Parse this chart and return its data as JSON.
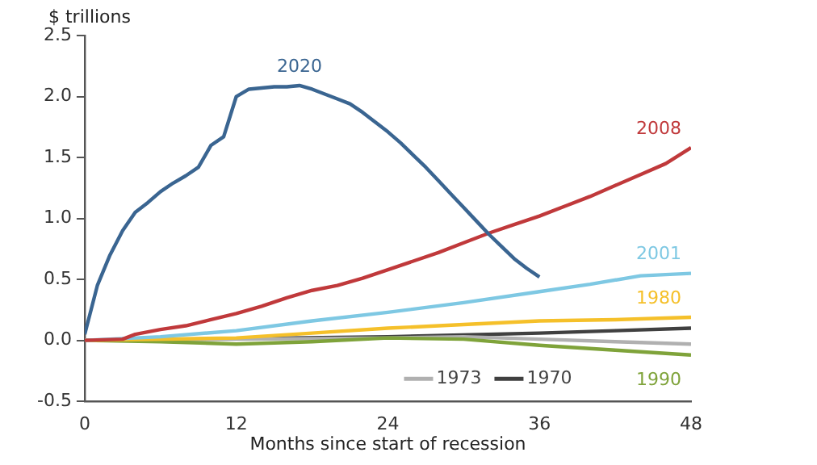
{
  "chart_data": {
    "type": "line",
    "ylabel": "$ trillions",
    "xlabel": "Months since start of recession",
    "xlim": [
      0,
      48
    ],
    "xticks": [
      0,
      12,
      24,
      36,
      48
    ],
    "ylim": [
      -0.5,
      2.5
    ],
    "yticks": [
      {
        "value": -0.5,
        "label": "-0.5"
      },
      {
        "value": 0,
        "label": "0.0"
      },
      0.5,
      {
        "value": 1,
        "label": "1.0"
      },
      1.5,
      {
        "value": 2,
        "label": "2.0"
      },
      2.5
    ],
    "grid": false,
    "legend": "bottom",
    "marker": "none",
    "line_style": "solid",
    "series": [
      {
        "name": "2020",
        "color": "#3a6591",
        "x": [
          0,
          1,
          2,
          3,
          4,
          5,
          6,
          7,
          8,
          9,
          10,
          11,
          12,
          13,
          14,
          15,
          16,
          17,
          18,
          19,
          20,
          21,
          22,
          23,
          24,
          25,
          26,
          27,
          28,
          29,
          30,
          31,
          32,
          33,
          34,
          35,
          36
        ],
        "values": [
          0.05,
          0.45,
          0.7,
          0.9,
          1.05,
          1.13,
          1.22,
          1.29,
          1.35,
          1.42,
          1.6,
          1.67,
          2.0,
          2.06,
          2.07,
          2.08,
          2.08,
          2.09,
          2.06,
          2.02,
          1.98,
          1.94,
          1.87,
          1.79,
          1.71,
          1.62,
          1.52,
          1.42,
          1.31,
          1.2,
          1.09,
          0.98,
          0.87,
          0.77,
          0.67,
          0.59,
          0.52
        ]
      },
      {
        "name": "2008",
        "color": "#c0393b",
        "x": [
          0,
          3,
          4,
          6,
          8,
          10,
          12,
          14,
          16,
          18,
          20,
          22,
          24,
          26,
          28,
          30,
          32,
          34,
          36,
          38,
          40,
          42,
          44,
          46,
          48
        ],
        "values": [
          0,
          0.01,
          0.05,
          0.09,
          0.12,
          0.17,
          0.22,
          0.28,
          0.35,
          0.41,
          0.45,
          0.51,
          0.58,
          0.65,
          0.72,
          0.8,
          0.88,
          0.95,
          1.02,
          1.1,
          1.18,
          1.27,
          1.36,
          1.45,
          1.58
        ]
      },
      {
        "name": "2001",
        "color": "#7ec8e3",
        "x": [
          0,
          6,
          12,
          18,
          24,
          30,
          36,
          40,
          44,
          48
        ],
        "values": [
          0,
          0.03,
          0.08,
          0.16,
          0.23,
          0.31,
          0.4,
          0.46,
          0.53,
          0.55
        ]
      },
      {
        "name": "1980",
        "color": "#f5c02a",
        "x": [
          0,
          12,
          18,
          24,
          30,
          36,
          42,
          48
        ],
        "values": [
          0,
          0.02,
          0.06,
          0.1,
          0.13,
          0.16,
          0.17,
          0.19
        ]
      },
      {
        "name": "1990",
        "color": "#7fa33a",
        "x": [
          0,
          6,
          12,
          18,
          24,
          30,
          36,
          42,
          48
        ],
        "values": [
          0,
          -0.01,
          -0.03,
          -0.01,
          0.02,
          0.01,
          -0.04,
          -0.08,
          -0.12
        ]
      },
      {
        "name": "1973",
        "color": "#b0b0b0",
        "x": [
          0,
          12,
          24,
          30,
          36,
          42,
          48
        ],
        "values": [
          0,
          0.01,
          0.02,
          0.03,
          0.01,
          -0.01,
          -0.03
        ]
      },
      {
        "name": "1970",
        "color": "#404040",
        "x": [
          0,
          24,
          36,
          42,
          48
        ],
        "values": [
          0,
          0.03,
          0.06,
          0.08,
          0.1
        ]
      }
    ]
  }
}
